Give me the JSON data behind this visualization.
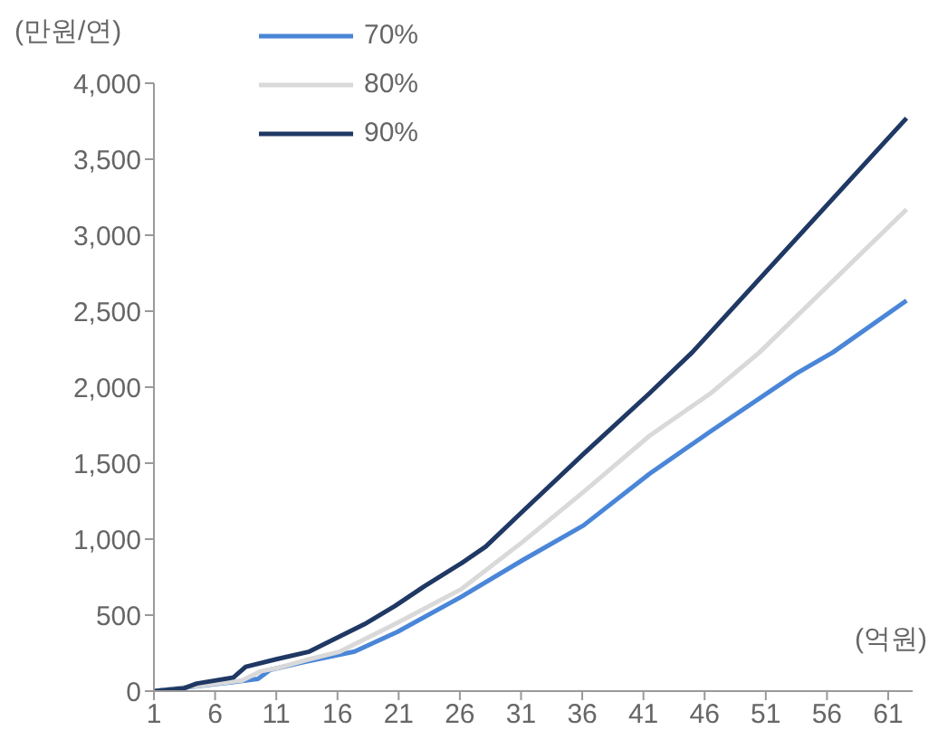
{
  "chart_data": {
    "type": "line",
    "ylabel": "(만원/연)",
    "xlabel": "(억원)",
    "xlim": [
      1,
      63
    ],
    "xticks": [
      1,
      6,
      11,
      16,
      21,
      26,
      31,
      36,
      41,
      46,
      51,
      56,
      61
    ],
    "ylim": [
      0,
      4000
    ],
    "yticks": [
      0,
      {
        "value": 500,
        "label": "500"
      },
      {
        "value": 1000,
        "label": "1,000"
      },
      {
        "value": 1500,
        "label": "1,500"
      },
      {
        "value": 2000,
        "label": "2,000"
      },
      {
        "value": 2500,
        "label": "2,500"
      },
      {
        "value": 3000,
        "label": "3,000"
      },
      {
        "value": 3500,
        "label": "3,500"
      },
      {
        "value": 4000,
        "label": "4,000"
      }
    ],
    "grid": false,
    "legend": "top left",
    "marker": "none",
    "line_style": "solid",
    "series": [
      {
        "name": "70%",
        "color": "#4a86d8",
        "x": [
          1,
          7.5,
          9.5,
          10.5,
          13.2,
          17.4,
          20.9,
          26.1,
          31.1,
          36.1,
          41.5,
          46.5,
          53.5,
          56.5,
          62.5
        ],
        "values": [
          0,
          60,
          80,
          140,
          190,
          260,
          390,
          620,
          860,
          1090,
          1430,
          1710,
          2090,
          2230,
          2570
        ]
      },
      {
        "name": "80%",
        "color": "#d9d9d9",
        "x": [
          1,
          8.2,
          9.7,
          11,
          13.7,
          16.2,
          20.9,
          26.1,
          31.1,
          36.1,
          41.5,
          46.5,
          50.5,
          62.5
        ],
        "values": [
          0,
          70,
          130,
          150,
          210,
          260,
          450,
          670,
          980,
          1310,
          1680,
          1960,
          2230,
          3170
        ]
      },
      {
        "name": "90%",
        "color": "#1f3864",
        "x": [
          1,
          3.5,
          4.5,
          7.5,
          8.5,
          11,
          13.7,
          14.7,
          18.2,
          20.7,
          23.1,
          26.1,
          28.1,
          31.1,
          36.1,
          41.5,
          45,
          62.5
        ],
        "values": [
          0,
          20,
          50,
          90,
          160,
          210,
          260,
          300,
          440,
          560,
          690,
          840,
          950,
          1180,
          1560,
          1960,
          2230,
          3770
        ]
      }
    ]
  }
}
